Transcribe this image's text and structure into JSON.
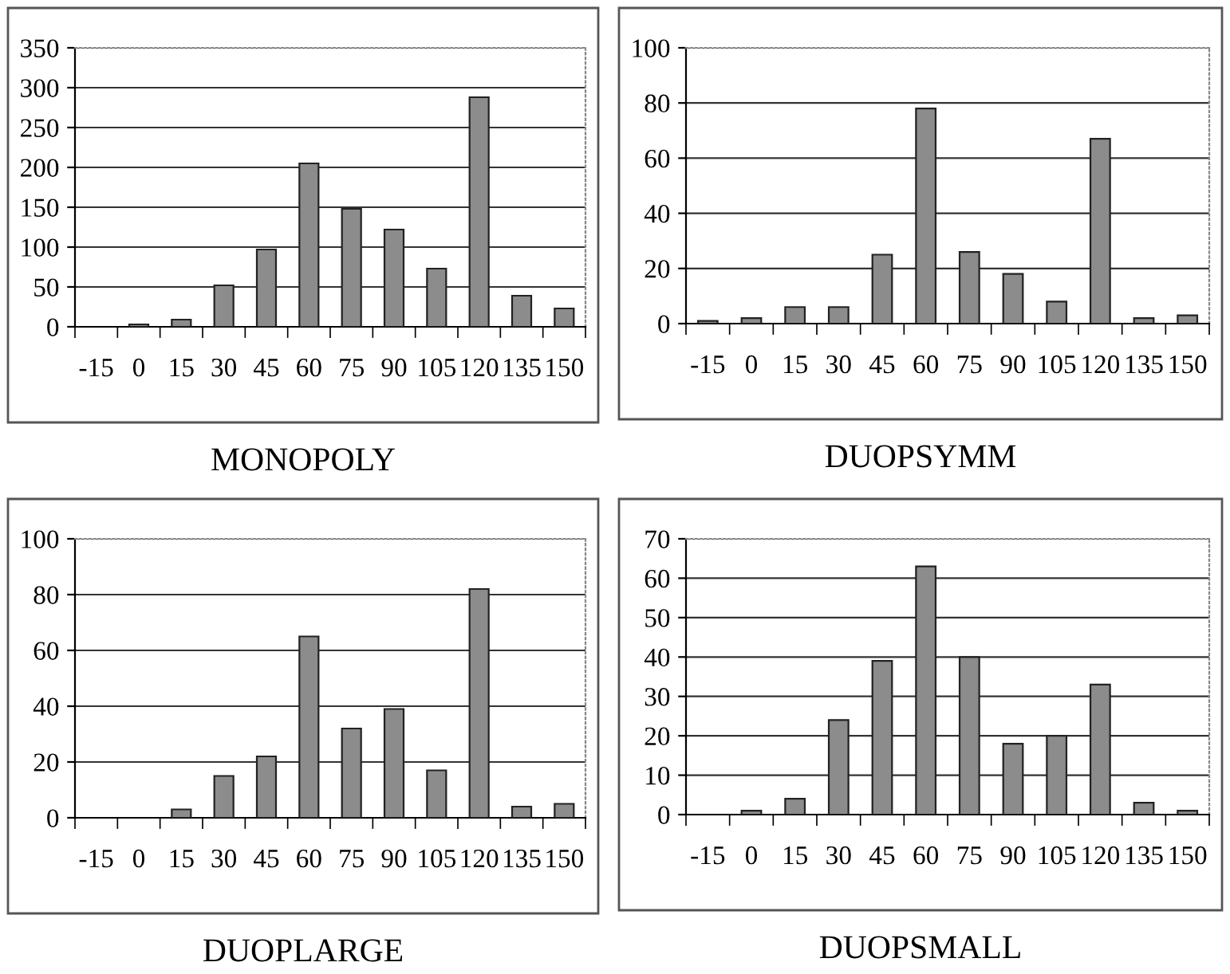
{
  "chart_data": [
    {
      "type": "bar",
      "title": "MONOPOLY",
      "categories": [
        "-15",
        "0",
        "15",
        "30",
        "45",
        "60",
        "75",
        "90",
        "105",
        "120",
        "135",
        "150"
      ],
      "values": [
        0,
        3,
        9,
        52,
        97,
        205,
        148,
        122,
        73,
        288,
        39,
        23
      ],
      "color": "#8c8c8c",
      "ylim": [
        0,
        350
      ],
      "yticks": [
        0,
        50,
        100,
        150,
        200,
        250,
        300,
        350
      ],
      "grid": "y"
    },
    {
      "type": "bar",
      "title": "DUOPSYMM",
      "categories": [
        "-15",
        "0",
        "15",
        "30",
        "45",
        "60",
        "75",
        "90",
        "105",
        "120",
        "135",
        "150"
      ],
      "values": [
        1,
        2,
        6,
        6,
        25,
        78,
        26,
        18,
        8,
        67,
        2,
        3
      ],
      "color": "#8c8c8c",
      "ylim": [
        0,
        100
      ],
      "yticks": [
        0,
        20,
        40,
        60,
        80,
        100
      ],
      "grid": "y"
    },
    {
      "type": "bar",
      "title": "DUOPLARGE",
      "categories": [
        "-15",
        "0",
        "15",
        "30",
        "45",
        "60",
        "75",
        "90",
        "105",
        "120",
        "135",
        "150"
      ],
      "values": [
        0,
        0,
        3,
        15,
        22,
        65,
        32,
        39,
        17,
        82,
        4,
        5
      ],
      "color": "#8c8c8c",
      "ylim": [
        0,
        100
      ],
      "yticks": [
        0,
        20,
        40,
        60,
        80,
        100
      ],
      "grid": "y"
    },
    {
      "type": "bar",
      "title": "DUOPSMALL",
      "categories": [
        "-15",
        "0",
        "15",
        "30",
        "45",
        "60",
        "75",
        "90",
        "105",
        "120",
        "135",
        "150"
      ],
      "values": [
        0,
        1,
        4,
        24,
        39,
        63,
        40,
        18,
        20,
        33,
        3,
        1
      ],
      "color": "#8c8c8c",
      "ylim": [
        0,
        70
      ],
      "yticks": [
        0,
        10,
        20,
        30,
        40,
        50,
        60,
        70
      ],
      "grid": "y"
    }
  ]
}
